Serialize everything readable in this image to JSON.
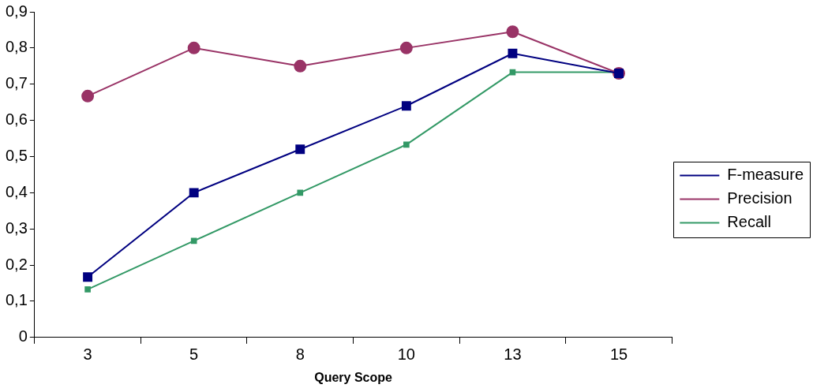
{
  "chart_data": {
    "type": "line",
    "xlabel": "Query Scope",
    "categories": [
      "3",
      "5",
      "8",
      "10",
      "13",
      "15"
    ],
    "series": [
      {
        "name": "F-measure",
        "color": "#000080",
        "marker": "square",
        "values": [
          0.167,
          0.4,
          0.52,
          0.64,
          0.785,
          0.73
        ]
      },
      {
        "name": "Precision",
        "color": "#993366",
        "marker": "circle",
        "values": [
          0.667,
          0.8,
          0.75,
          0.8,
          0.845,
          0.73
        ]
      },
      {
        "name": "Recall",
        "color": "#339966",
        "marker": "square",
        "values": [
          0.133,
          0.267,
          0.4,
          0.533,
          0.733,
          0.733
        ]
      }
    ],
    "ylim": [
      0,
      0.9
    ],
    "yticks": [
      0,
      {
        "value": 0.1,
        "label": "0,1"
      },
      {
        "value": 0.2,
        "label": "0,2"
      },
      {
        "value": 0.3,
        "label": "0,3"
      },
      {
        "value": 0.4,
        "label": "0,4"
      },
      {
        "value": 0.5,
        "label": "0,5"
      },
      {
        "value": 0.6,
        "label": "0,6"
      },
      {
        "value": 0.7,
        "label": "0,7"
      },
      {
        "value": 0.8,
        "label": "0,8"
      },
      {
        "value": 0.9,
        "label": "0,9"
      }
    ],
    "legend": "right",
    "grid": false
  }
}
